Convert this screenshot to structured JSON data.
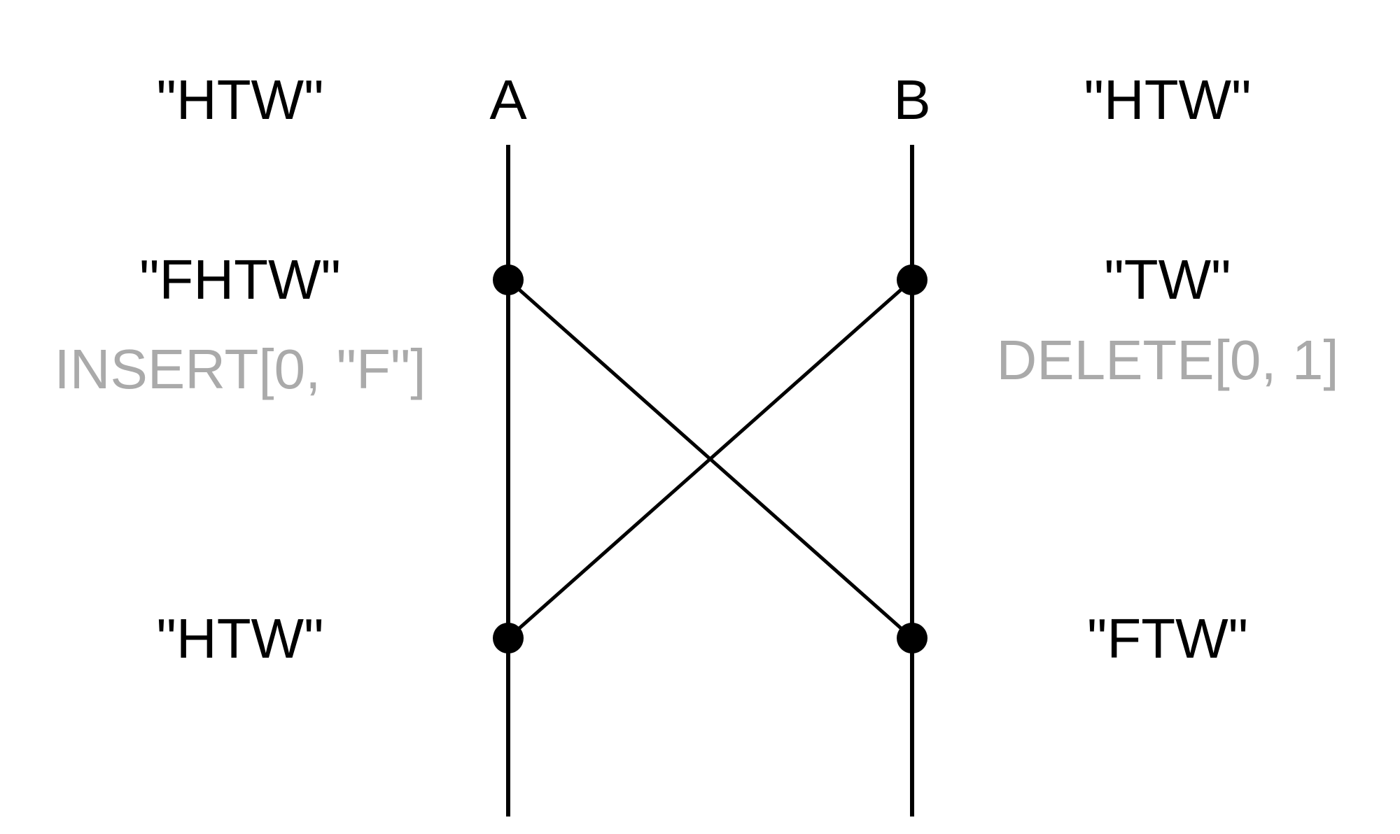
{
  "participants": {
    "a": {
      "name": "A"
    },
    "b": {
      "name": "B"
    }
  },
  "states": {
    "a_initial": "\"HTW\"",
    "b_initial": "\"HTW\"",
    "a_after_local": "\"FHTW\"",
    "b_after_local": "\"TW\"",
    "a_final": "\"HTW\"",
    "b_final": "\"FTW\""
  },
  "operations": {
    "a_op": "INSERT[0, \"F\"]",
    "b_op": "DELETE[0, 1]"
  },
  "colors": {
    "line": "#000000",
    "text": "#000000",
    "operation_text": "#aaaaaa",
    "background": "#ffffff"
  }
}
